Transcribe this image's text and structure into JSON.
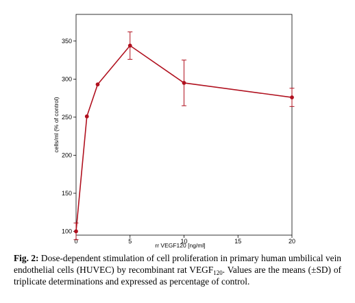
{
  "chart_data": {
    "type": "line",
    "xlabel": "rr VEGF120 [ng/ml]",
    "ylabel": "cells/ml (% of control)",
    "xlim": [
      0,
      20
    ],
    "ylim": [
      95,
      385
    ],
    "x_ticks": [
      0,
      5,
      10,
      15,
      20
    ],
    "y_ticks": [
      100,
      150,
      200,
      250,
      300,
      350
    ],
    "grid": false,
    "line_color": "#b0101e",
    "series": [
      {
        "x": [
          0,
          1,
          2,
          5,
          10,
          20
        ],
        "y": [
          100,
          251,
          293,
          344,
          295,
          276
        ],
        "error": [
          11,
          null,
          null,
          18,
          30,
          12
        ]
      }
    ]
  },
  "caption": {
    "label": "Fig. 2:",
    "text_before": "Dose-dependent stimulation of cell proliferation in primary human umbilical vein endothelial cells (HUVEC) by recombinant rat VEGF",
    "subscript": "120",
    "text_after": ". Values are the means (±SD) of triplicate determinations and expressed as percentage of control."
  }
}
